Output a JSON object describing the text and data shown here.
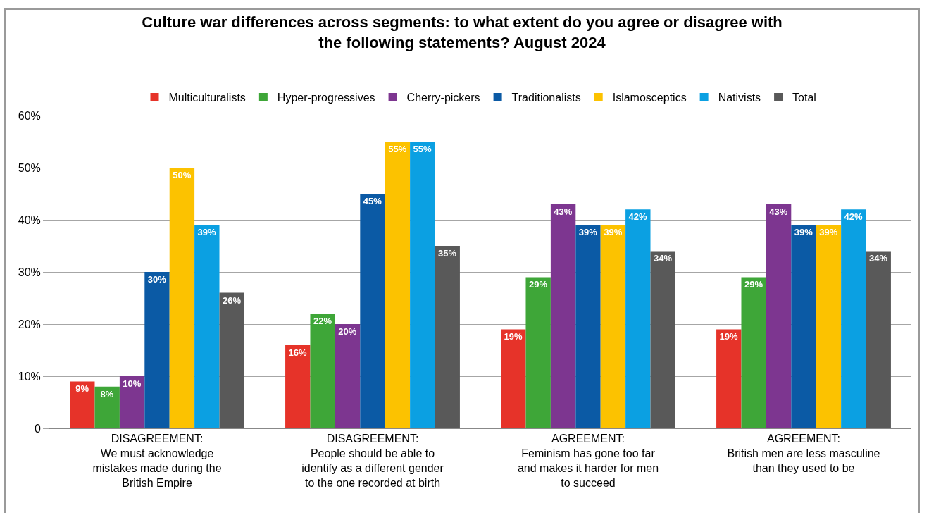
{
  "chart_data": {
    "type": "bar",
    "title": "Culture war differences across segments: to what extent do you agree or disagree with\nthe following statements? August 2024",
    "categories": [
      "DISAGREEMENT:\nWe must acknowledge\nmistakes made during the\nBritish Empire",
      "DISAGREEMENT:\nPeople should be able to\nidentify as a different gender\nto the one recorded at birth",
      "AGREEMENT:\nFeminism has gone too far\nand makes it harder for men\nto succeed",
      "AGREEMENT:\nBritish men are less masculine\nthan they used to be"
    ],
    "series": [
      {
        "name": "Multiculturalists",
        "color": "#e63329",
        "values": [
          9,
          16,
          19,
          19
        ],
        "value_labels": [
          "9%",
          "16%",
          "19%",
          "19%"
        ]
      },
      {
        "name": "Hyper-progressives",
        "color": "#3ea638",
        "values": [
          8,
          22,
          29,
          29
        ],
        "value_labels": [
          "8%",
          "22%",
          "29%",
          "29%"
        ]
      },
      {
        "name": "Cherry-pickers",
        "color": "#7d3690",
        "values": [
          10,
          20,
          43,
          43
        ],
        "value_labels": [
          "10%",
          "20%",
          "43%",
          "43%"
        ]
      },
      {
        "name": "Traditionalists",
        "color": "#0b5aa5",
        "values": [
          30,
          45,
          39,
          39
        ],
        "value_labels": [
          "30%",
          "45%",
          "39%",
          "39%"
        ]
      },
      {
        "name": "Islamosceptics",
        "color": "#fcc200",
        "values": [
          50,
          55,
          39,
          39
        ],
        "value_labels": [
          "50%",
          "55%",
          "39%",
          "39%"
        ]
      },
      {
        "name": "Nativists",
        "color": "#0ba0e2",
        "values": [
          39,
          55,
          42,
          42
        ],
        "value_labels": [
          "39%",
          "55%",
          "42%",
          "42%"
        ]
      },
      {
        "name": "Total",
        "color": "#595959",
        "values": [
          26,
          35,
          34,
          34
        ],
        "value_labels": [
          "26%",
          "35%",
          "34%",
          "34%"
        ]
      }
    ],
    "ylim": [
      0,
      60
    ],
    "yticks": [
      {
        "value": 0,
        "label": "0"
      },
      {
        "value": 10,
        "label": "10%"
      },
      {
        "value": 20,
        "label": "20%"
      },
      {
        "value": 30,
        "label": "30%"
      },
      {
        "value": 40,
        "label": "40%"
      },
      {
        "value": 50,
        "label": "50%"
      },
      {
        "value": 60,
        "label": "60%"
      }
    ],
    "grid": "y",
    "legend": "top"
  }
}
